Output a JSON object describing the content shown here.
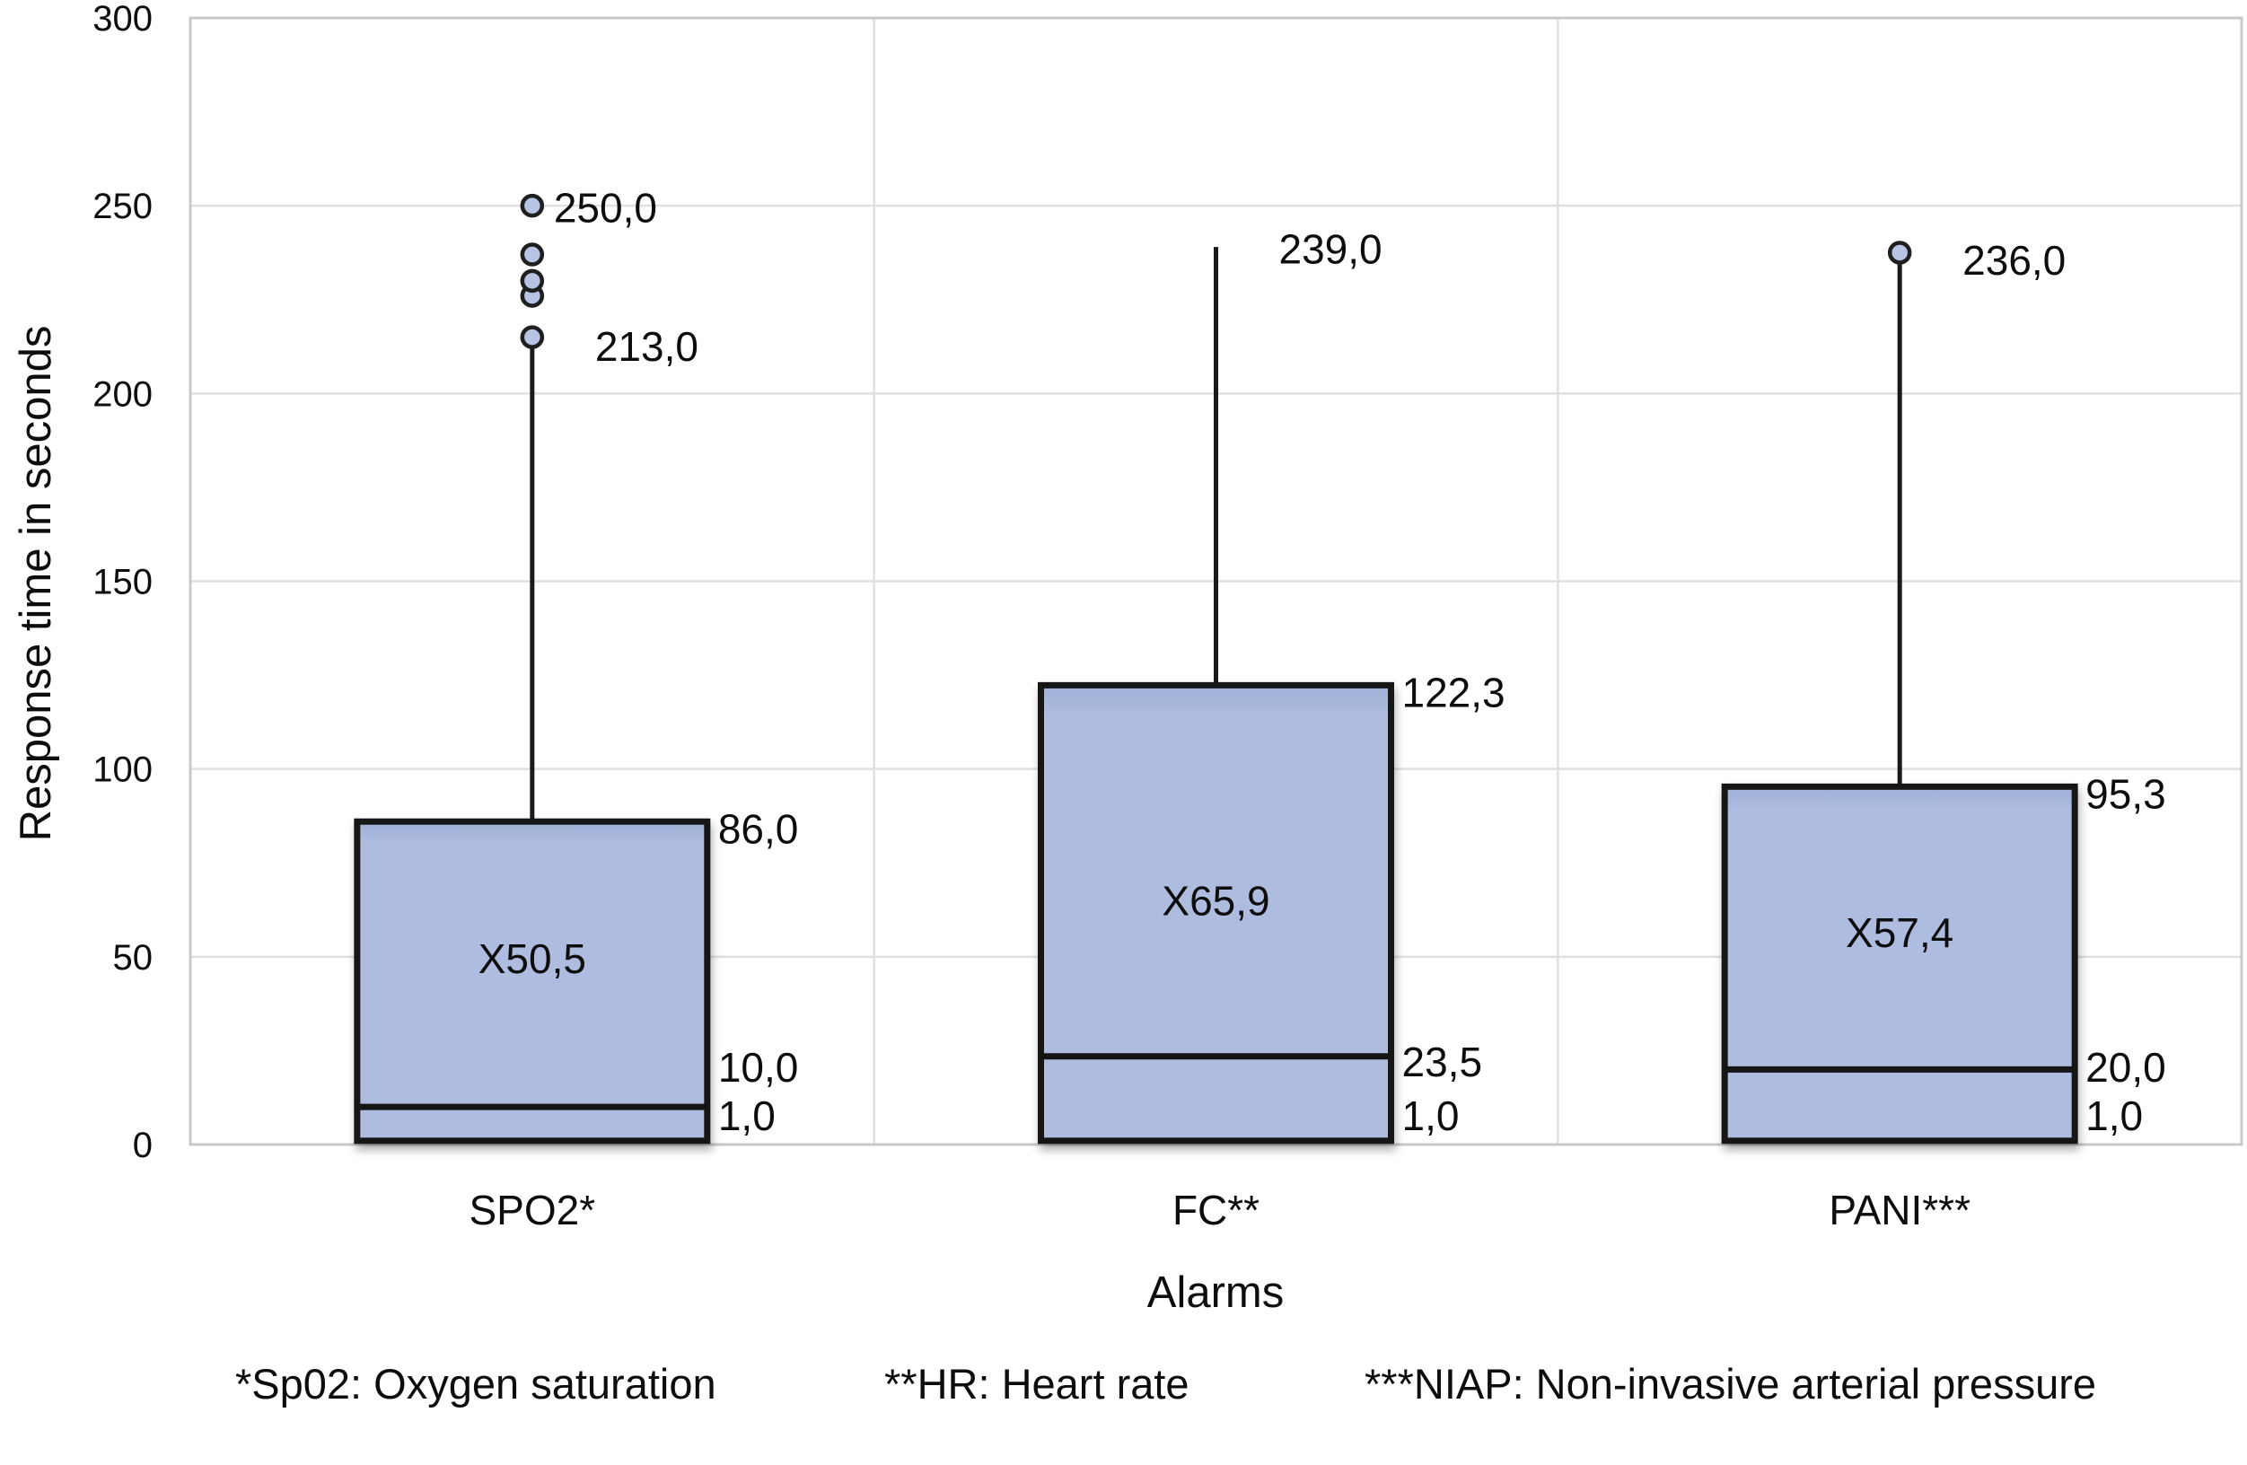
{
  "figure": {
    "background": "#ffffff",
    "text_color": "#0d0d0d"
  },
  "chart_data": {
    "type": "boxplot",
    "title": "",
    "xlabel": "Alarms",
    "ylabel": "Response time in seconds",
    "ylim": [
      0,
      300
    ],
    "yticks": [
      0,
      50,
      100,
      150,
      200,
      250,
      300
    ],
    "grid": "horizontal-and-column-separators",
    "legend_position": "none",
    "decimal_separator": ",",
    "categories": [
      "SPO2*",
      "FC**",
      "PANI***"
    ],
    "series": [
      {
        "category": "SPO2*",
        "q1": 1.0,
        "median": 10.0,
        "q3": 86.0,
        "whisker_high": 213.0,
        "whisker_low": 1.0,
        "mean": 50.5,
        "outliers": [
          215,
          226,
          230,
          237,
          250
        ],
        "labels": {
          "q1": "1,0",
          "median": "10,0",
          "q3": "86,0",
          "whisker_high": "213,0",
          "outlier_max": "250,0",
          "mean": "X50,5"
        }
      },
      {
        "category": "FC**",
        "q1": 1.0,
        "median": 23.5,
        "q3": 122.3,
        "whisker_high": 239.0,
        "whisker_low": 1.0,
        "mean": 65.9,
        "outliers": [],
        "labels": {
          "q1": "1,0",
          "median": "23,5",
          "q3": "122,3",
          "whisker_high": "239,0",
          "mean": "X65,9"
        }
      },
      {
        "category": "PANI***",
        "q1": 1.0,
        "median": 20.0,
        "q3": 95.3,
        "whisker_high": 236.0,
        "whisker_low": 1.0,
        "mean": 57.4,
        "outliers": [
          237.5
        ],
        "labels": {
          "q1": "1,0",
          "median": "20,0",
          "q3": "95,3",
          "whisker_high": "236,0",
          "mean": "X57,4"
        }
      }
    ],
    "colors": {
      "box_fill": "#aebce0",
      "box_fill_dark": "#9fb1d7",
      "box_stroke": "#141414",
      "whisker": "#1a1a1a",
      "median": "#141414",
      "outlier_fill": "#b7c4e4",
      "outlier_stroke": "#1f1f1f",
      "gridline": "#e0e0e0",
      "plot_border": "#c8c8c8",
      "label_text": "#0d0d0d"
    },
    "footnotes": [
      "*Sp02: Oxygen saturation",
      "**HR: Heart rate",
      "***NIAP: Non-invasive arterial pressure"
    ]
  }
}
